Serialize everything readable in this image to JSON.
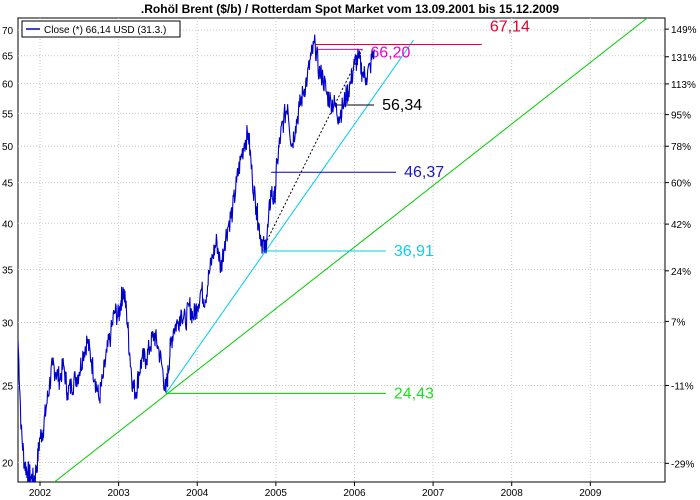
{
  "chart_data": {
    "type": "line",
    "title": ".Rohöl Brent ($/b) / Rotterdam Spot Market vom 13.09.2001 bis 15.12.2009",
    "legend": {
      "label": "Close (*) 66,14 USD (31.3.)",
      "placement": "top-left"
    },
    "y_scale": "log",
    "ylim": [
      18.9,
      72.5
    ],
    "xlim": [
      2001.72,
      2009.95
    ],
    "left_ticks": [
      {
        "value": 20,
        "label": "20"
      },
      {
        "value": 25,
        "label": "25"
      },
      {
        "value": 30,
        "label": "30"
      },
      {
        "value": 35,
        "label": "35"
      },
      {
        "value": 40,
        "label": "40"
      },
      {
        "value": 45,
        "label": "45"
      },
      {
        "value": 50,
        "label": "50"
      },
      {
        "value": 55,
        "label": "55"
      },
      {
        "value": 60,
        "label": "60"
      },
      {
        "value": 65,
        "label": "65"
      },
      {
        "value": 70,
        "label": "70"
      }
    ],
    "right_ticks": [
      {
        "value": 19.95,
        "label": "-29%"
      },
      {
        "value": 25.0,
        "label": "-11%"
      },
      {
        "value": 30.1,
        "label": "7%"
      },
      {
        "value": 34.85,
        "label": "24%"
      },
      {
        "value": 39.9,
        "label": "42%"
      },
      {
        "value": 45.0,
        "label": "60%"
      },
      {
        "value": 50.0,
        "label": "78%"
      },
      {
        "value": 54.8,
        "label": "95%"
      },
      {
        "value": 59.9,
        "label": "113%"
      },
      {
        "value": 64.8,
        "label": "131%"
      },
      {
        "value": 70.2,
        "label": "149%"
      }
    ],
    "x_ticks": [
      {
        "value": 2002,
        "label": "2002"
      },
      {
        "value": 2003,
        "label": "2003"
      },
      {
        "value": 2004,
        "label": "2004"
      },
      {
        "value": 2005,
        "label": "2005"
      },
      {
        "value": 2006,
        "label": "2006"
      },
      {
        "value": 2007,
        "label": "2007"
      },
      {
        "value": 2008,
        "label": "2008"
      },
      {
        "value": 2009,
        "label": "2009"
      }
    ],
    "grid": true,
    "series": [
      {
        "color": "#0000cc",
        "x": [
          2001.72,
          2001.76,
          2001.8,
          2001.84,
          2001.88,
          2001.92,
          2001.96,
          2002.0,
          2002.04,
          2002.08,
          2002.12,
          2002.16,
          2002.2,
          2002.25,
          2002.3,
          2002.35,
          2002.4,
          2002.45,
          2002.5,
          2002.55,
          2002.6,
          2002.65,
          2002.7,
          2002.75,
          2002.8,
          2002.85,
          2002.9,
          2002.95,
          2003.0,
          2003.03,
          2003.06,
          2003.1,
          2003.14,
          2003.18,
          2003.22,
          2003.26,
          2003.3,
          2003.35,
          2003.4,
          2003.45,
          2003.5,
          2003.55,
          2003.6,
          2003.63,
          2003.66,
          2003.7,
          2003.75,
          2003.8,
          2003.85,
          2003.9,
          2003.95,
          2004.0,
          2004.05,
          2004.1,
          2004.15,
          2004.2,
          2004.25,
          2004.3,
          2004.35,
          2004.4,
          2004.45,
          2004.5,
          2004.55,
          2004.6,
          2004.65,
          2004.7,
          2004.75,
          2004.78,
          2004.82,
          2004.86,
          2004.9,
          2004.94,
          2004.98,
          2005.02,
          2005.06,
          2005.1,
          2005.15,
          2005.2,
          2005.25,
          2005.3,
          2005.35,
          2005.4,
          2005.45,
          2005.5,
          2005.55,
          2005.6,
          2005.65,
          2005.7,
          2005.75,
          2005.8,
          2005.85,
          2005.9,
          2005.95,
          2006.0,
          2006.05,
          2006.1,
          2006.15,
          2006.2,
          2006.25
        ],
        "values": [
          28.5,
          22.0,
          20.0,
          19.5,
          19.2,
          19.0,
          19.8,
          21.5,
          22.0,
          23.5,
          25.0,
          26.5,
          26.0,
          25.5,
          26.5,
          24.5,
          25.0,
          25.5,
          26.0,
          27.5,
          28.5,
          27.0,
          25.5,
          24.0,
          25.5,
          27.5,
          29.0,
          31.0,
          30.5,
          32.0,
          33.0,
          31.0,
          27.5,
          25.0,
          24.5,
          26.0,
          27.0,
          27.0,
          28.0,
          29.0,
          28.0,
          26.5,
          24.5,
          26.0,
          28.0,
          29.5,
          30.0,
          31.0,
          30.0,
          31.5,
          30.5,
          31.5,
          33.0,
          32.0,
          34.5,
          36.5,
          38.0,
          35.0,
          38.0,
          40.0,
          41.5,
          45.0,
          48.0,
          50.5,
          52.0,
          45.5,
          42.0,
          40.0,
          38.0,
          37.0,
          39.5,
          44.0,
          42.5,
          48.0,
          51.5,
          54.0,
          56.5,
          50.0,
          53.0,
          56.0,
          58.5,
          61.0,
          65.0,
          67.14,
          62.0,
          61.0,
          58.0,
          57.0,
          56.34,
          54.5,
          56.0,
          58.0,
          60.0,
          63.5,
          64.5,
          62.0,
          61.0,
          63.0,
          66.2
        ]
      }
    ],
    "trend_lines": [
      {
        "color": "#00cc00",
        "x": [
          2001.72,
          2009.95
        ],
        "values": [
          17.4,
          75.5
        ]
      },
      {
        "color": "#00ccee",
        "x": [
          2003.6,
          2006.75
        ],
        "values": [
          24.43,
          68.0
        ]
      },
      {
        "color": "#000000",
        "x": [
          2004.82,
          2006.1
        ],
        "values": [
          36.91,
          66.2
        ],
        "dashed": true
      }
    ],
    "levels": [
      {
        "label": "67,14",
        "value": 67.14,
        "x_start": 2005.5,
        "x_end": 2007.62,
        "color": "#e8003a",
        "label_color": "#e8002e"
      },
      {
        "label": "66,20",
        "value": 66.2,
        "x_start": 2005.53,
        "x_end": 2006.1,
        "color": "#dd00aa",
        "label_color": "#ee00cc"
      },
      {
        "label": "56,34",
        "value": 56.34,
        "x_start": 2005.75,
        "x_end": 2006.25,
        "color": "#000000",
        "label_color": "#000000"
      },
      {
        "label": "46,37",
        "value": 46.37,
        "x_start": 2004.94,
        "x_end": 2006.53,
        "color": "#0000cc",
        "label_color": "#1818cc"
      },
      {
        "label": "36,91",
        "value": 36.91,
        "x_start": 2004.82,
        "x_end": 2006.4,
        "color": "#00ccee",
        "label_color": "#11ccee"
      },
      {
        "label": "24,43",
        "value": 24.43,
        "x_start": 2003.6,
        "x_end": 2006.4,
        "color": "#00cc00",
        "label_color": "#22dd22"
      }
    ]
  }
}
